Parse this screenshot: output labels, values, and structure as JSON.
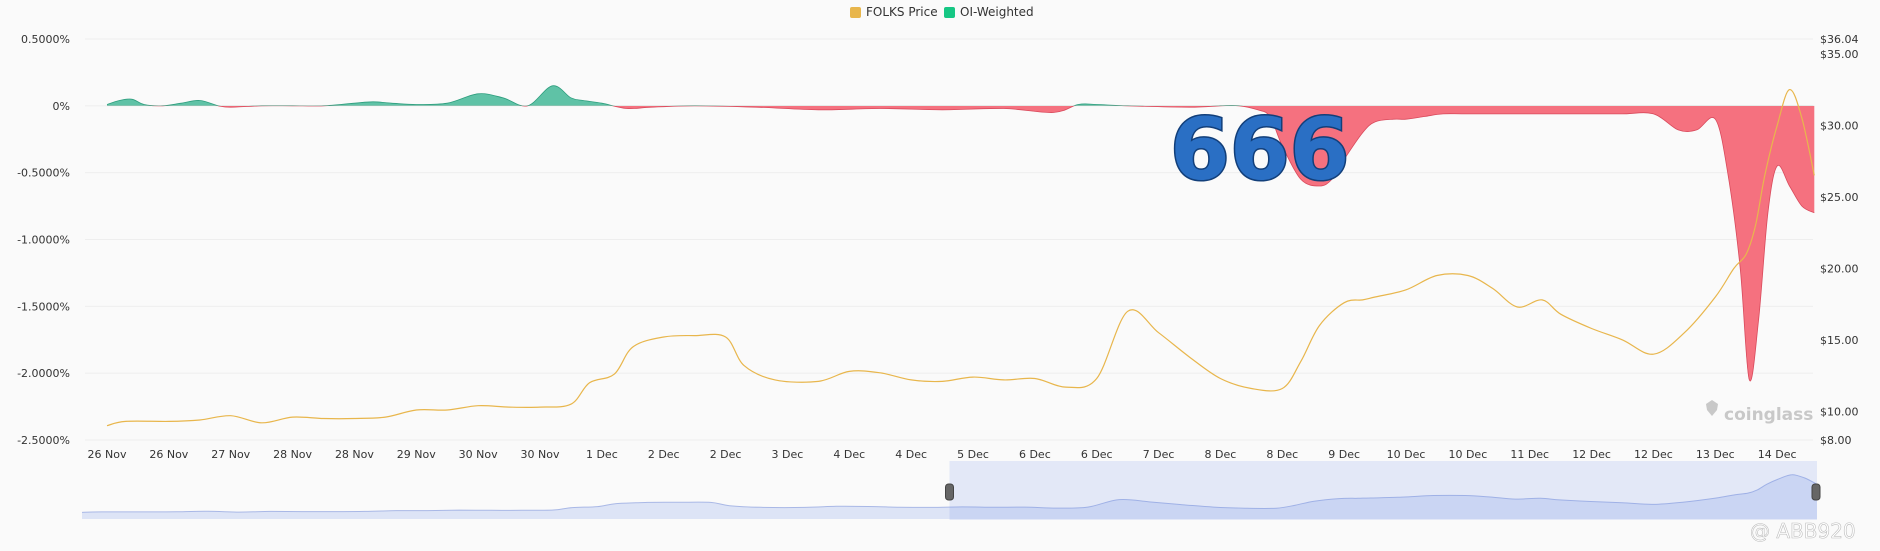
{
  "chart_data": {
    "type": "area",
    "legend": {
      "placement": "top-center",
      "items": [
        {
          "label": "FOLKS Price",
          "color": "#e8b64c"
        },
        {
          "label": "OI-Weighted",
          "color": "#16c784"
        }
      ]
    },
    "x_labels": [
      "26 Nov",
      "26 Nov",
      "27 Nov",
      "28 Nov",
      "28 Nov",
      "29 Nov",
      "30 Nov",
      "30 Nov",
      "1 Dec",
      "2 Dec",
      "2 Dec",
      "3 Dec",
      "4 Dec",
      "4 Dec",
      "5 Dec",
      "6 Dec",
      "6 Dec",
      "7 Dec",
      "8 Dec",
      "8 Dec",
      "9 Dec",
      "10 Dec",
      "10 Dec",
      "11 Dec",
      "12 Dec",
      "12 Dec",
      "13 Dec",
      "14 Dec"
    ],
    "y_left": {
      "ticks": [
        "0.5000%",
        "0%",
        "-0.5000%",
        "-1.0000%",
        "-1.5000%",
        "-2.0000%",
        "-2.5000%"
      ],
      "tick_values": [
        0.5,
        0,
        -0.5,
        -1.0,
        -1.5,
        -2.0,
        -2.5
      ],
      "range": [
        -2.5,
        0.5
      ]
    },
    "y_right": {
      "ticks": [
        "$36.04",
        "$35.00",
        "$30.00",
        "$25.00",
        "$20.00",
        "$15.00",
        "$10.00",
        "$8.00"
      ],
      "tick_values": [
        36.04,
        35,
        30,
        25,
        20,
        15,
        10,
        8
      ],
      "range": [
        8,
        36.04
      ]
    },
    "funding_series": {
      "name": "OI-Weighted",
      "positive_color": "#5fc2a6",
      "negative_color": "#f5717f",
      "x": [
        0,
        0.2,
        0.4,
        0.6,
        0.9,
        1.2,
        1.5,
        1.8,
        2.0,
        2.5,
        3.0,
        3.5,
        4.0,
        4.3,
        4.6,
        5.0,
        5.5,
        6.0,
        6.4,
        6.8,
        7.2,
        7.5,
        7.7,
        8.0,
        8.4,
        8.8,
        9.5,
        10.5,
        11.5,
        12.5,
        13.5,
        14.5,
        15.3,
        15.7,
        16.0,
        16.5,
        17.5,
        18.0,
        18.3,
        18.6,
        18.8,
        19.0,
        19.3,
        19.6,
        19.8,
        20.0,
        20.3,
        20.5,
        20.8,
        21.0,
        21.3,
        21.6,
        22.0,
        23.0,
        24.0,
        24.5,
        25.0,
        25.4,
        25.7,
        26.0,
        26.2,
        26.4,
        26.55,
        26.7,
        26.85,
        27.0,
        27.2,
        27.4,
        27.6
      ],
      "values": [
        0.01,
        0.04,
        0.05,
        0.01,
        0.0,
        0.02,
        0.04,
        0.0,
        -0.01,
        0.0,
        0.0,
        0.0,
        0.02,
        0.03,
        0.02,
        0.01,
        0.02,
        0.09,
        0.06,
        0.0,
        0.15,
        0.06,
        0.04,
        0.02,
        -0.02,
        -0.01,
        0.0,
        -0.01,
        -0.03,
        -0.02,
        -0.03,
        -0.02,
        -0.05,
        0.01,
        0.01,
        0.0,
        -0.01,
        0.0,
        0.0,
        -0.03,
        -0.08,
        -0.3,
        -0.55,
        -0.6,
        -0.55,
        -0.4,
        -0.2,
        -0.12,
        -0.1,
        -0.1,
        -0.08,
        -0.06,
        -0.06,
        -0.06,
        -0.06,
        -0.06,
        -0.06,
        -0.18,
        -0.18,
        -0.1,
        -0.5,
        -1.2,
        -2.05,
        -1.6,
        -0.8,
        -0.45,
        -0.6,
        -0.75,
        -0.8
      ]
    },
    "price_series": {
      "name": "FOLKS Price",
      "color": "#e8b64c",
      "x": [
        0,
        0.3,
        1.0,
        1.5,
        2.0,
        2.5,
        3.0,
        3.5,
        4.0,
        4.5,
        5.0,
        5.5,
        6.0,
        6.5,
        7.0,
        7.5,
        7.8,
        8.2,
        8.5,
        9.0,
        9.5,
        10.0,
        10.3,
        10.8,
        11.5,
        12.0,
        12.5,
        13.0,
        13.5,
        14.0,
        14.5,
        15.0,
        15.5,
        16.0,
        16.5,
        17.0,
        17.5,
        18.0,
        18.5,
        19.0,
        19.3,
        19.6,
        20.0,
        20.3,
        20.5,
        21.0,
        21.5,
        22.0,
        22.4,
        22.8,
        23.2,
        23.5,
        24.0,
        24.5,
        25.0,
        25.5,
        26.0,
        26.3,
        26.5,
        26.65,
        26.8,
        27.0,
        27.2,
        27.4,
        27.6
      ],
      "values": [
        9.0,
        9.3,
        9.3,
        9.4,
        9.7,
        9.2,
        9.6,
        9.5,
        9.5,
        9.6,
        10.1,
        10.1,
        10.4,
        10.3,
        10.3,
        10.5,
        12.0,
        12.6,
        14.5,
        15.2,
        15.3,
        15.2,
        13.2,
        12.2,
        12.1,
        12.8,
        12.7,
        12.2,
        12.1,
        12.4,
        12.2,
        12.3,
        11.7,
        12.3,
        17.0,
        15.5,
        13.8,
        12.3,
        11.6,
        11.6,
        13.5,
        16.0,
        17.6,
        17.8,
        18.0,
        18.5,
        19.5,
        19.5,
        18.6,
        17.3,
        17.8,
        16.8,
        15.8,
        15.0,
        14.0,
        15.5,
        18.0,
        20.0,
        21.0,
        23.0,
        26.5,
        30.0,
        32.5,
        30.5,
        26.5
      ]
    },
    "navigator": {
      "selected_range": [
        0.5,
        1.0
      ]
    },
    "annotations": [
      {
        "text": "666"
      },
      {
        "text": "coinglass"
      },
      {
        "text": "@ ABB920"
      }
    ]
  }
}
